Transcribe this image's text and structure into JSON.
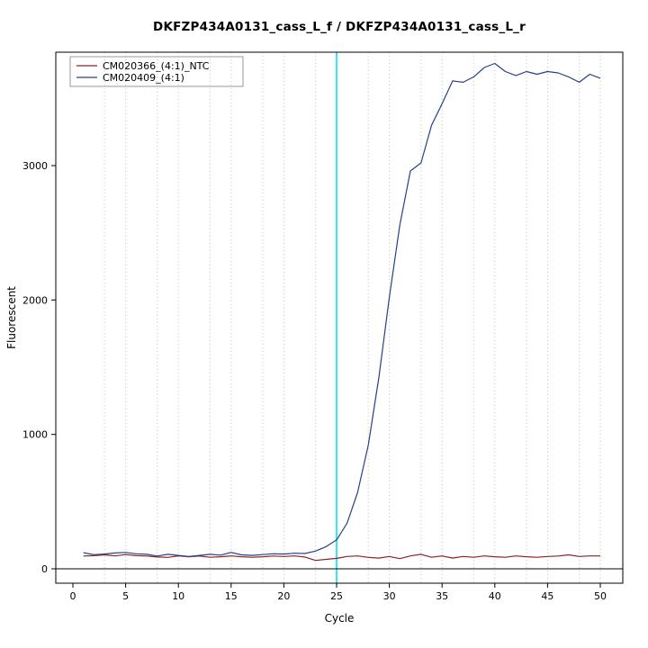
{
  "chart_data": {
    "type": "line",
    "title": "DKFZP434A0131_cass_L_f / DKFZP434A0131_cass_L_r",
    "xlabel": "Cycle",
    "ylabel": "Fluorescent",
    "xlim": [
      0,
      50
    ],
    "ylim": [
      0,
      3800
    ],
    "xticks": [
      0,
      5,
      10,
      15,
      20,
      25,
      30,
      35,
      40,
      45,
      50
    ],
    "yticks": [
      0,
      1000,
      2000,
      3000
    ],
    "grid": {
      "major_x": [
        5,
        10,
        15,
        20,
        25,
        30,
        35,
        40,
        45,
        50
      ],
      "major_color": "#c3c3c3",
      "minor_x": [
        3,
        8,
        13,
        18,
        23,
        28,
        33,
        38,
        43,
        48
      ],
      "minor_color": "#ddb8b8"
    },
    "threshold_line": {
      "x": 25,
      "color": "#00e5ee"
    },
    "zero_line": {
      "y": 0,
      "color": "#000000"
    },
    "legend": {
      "position": "top-left",
      "border_color": "#9a9a9a"
    },
    "x_values": [
      1,
      2,
      3,
      4,
      5,
      6,
      7,
      8,
      9,
      10,
      11,
      12,
      13,
      14,
      15,
      16,
      17,
      18,
      19,
      20,
      21,
      22,
      23,
      24,
      25,
      26,
      27,
      28,
      29,
      30,
      31,
      32,
      33,
      34,
      35,
      36,
      37,
      38,
      39,
      40,
      41,
      42,
      43,
      44,
      45,
      46,
      47,
      48,
      49,
      50
    ],
    "series": [
      {
        "name": "CM020366_(4:1)_NTC",
        "color": "#8b2323",
        "values": [
          95,
          98,
          104,
          96,
          106,
          98,
          95,
          88,
          85,
          96,
          90,
          95,
          86,
          90,
          96,
          90,
          86,
          90,
          95,
          92,
          96,
          88,
          62,
          70,
          78,
          92,
          96,
          85,
          80,
          92,
          76,
          96,
          108,
          86,
          96,
          80,
          92,
          86,
          96,
          90,
          86,
          96,
          90,
          86,
          92,
          95,
          104,
          92,
          96,
          96
        ]
      },
      {
        "name": "CM020409_(4:1)",
        "color": "#27408b",
        "values": [
          120,
          105,
          110,
          118,
          122,
          112,
          108,
          95,
          108,
          100,
          92,
          100,
          108,
          102,
          122,
          104,
          100,
          106,
          112,
          110,
          116,
          114,
          132,
          165,
          215,
          340,
          570,
          920,
          1420,
          2020,
          2560,
          2960,
          3020,
          3300,
          3460,
          3630,
          3620,
          3660,
          3730,
          3760,
          3700,
          3670,
          3700,
          3680,
          3700,
          3690,
          3660,
          3620,
          3680,
          3650
        ]
      }
    ]
  }
}
